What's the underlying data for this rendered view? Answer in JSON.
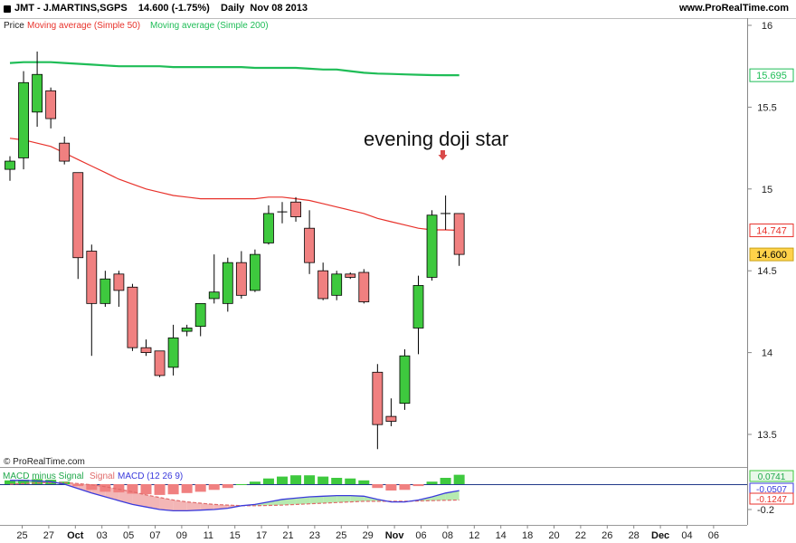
{
  "header": {
    "title": "JMT - J.MARTINS,SGPS    14.600 (-1.75%)    Daily  Nov 08 2013",
    "site": "www.ProRealTime.com"
  },
  "legend": {
    "price": "Price",
    "ma50": "Moving average (Simple 50)",
    "ma200": "Moving average (Simple 200)",
    "macd_diff": "MACD minus Signal",
    "signal": "Signal",
    "macd": "MACD (12 26 9)"
  },
  "watermark": "© ProRealTime.com",
  "annotation": "evening doji star",
  "colors": {
    "up": "#3ec93e",
    "down": "#f08080",
    "ma50": "#e8322b",
    "ma200": "#1fbd57",
    "macd_line": "#3a3adc",
    "signal_line": "#e06a6a",
    "macd_fill_pos": "#b6eab0",
    "macd_fill_neg": "#f3b6b6"
  },
  "chart_data": [
    {
      "type": "candlestick",
      "title": "JMT - J.MARTINS,SGPS",
      "ylim": [
        13.4,
        16.05
      ],
      "y_ticks": [
        16,
        15.5,
        15,
        14.5,
        14,
        13.5
      ],
      "x_tick_labels": [
        "25",
        "27",
        "Oct",
        "03",
        "05",
        "07",
        "09",
        "11",
        "15",
        "17",
        "21",
        "23",
        "25",
        "29",
        "Nov",
        "06",
        "08",
        "12",
        "14",
        "18",
        "20",
        "22",
        "26",
        "28",
        "Dec",
        "04",
        "06"
      ],
      "bold_x_labels": [
        "Oct",
        "Nov",
        "Dec"
      ],
      "price_labels": {
        "ma200": "15.695",
        "ma50": "14.747",
        "last": "14.600"
      },
      "candles": [
        {
          "o": 15.12,
          "h": 15.2,
          "l": 15.05,
          "c": 15.17
        },
        {
          "o": 15.19,
          "h": 15.72,
          "l": 15.12,
          "c": 15.65
        },
        {
          "o": 15.47,
          "h": 15.84,
          "l": 15.38,
          "c": 15.7
        },
        {
          "o": 15.6,
          "h": 15.62,
          "l": 15.37,
          "c": 15.43
        },
        {
          "o": 15.28,
          "h": 15.32,
          "l": 15.15,
          "c": 15.17
        },
        {
          "o": 15.1,
          "h": 15.1,
          "l": 14.45,
          "c": 14.58
        },
        {
          "o": 14.62,
          "h": 14.66,
          "l": 13.98,
          "c": 14.3
        },
        {
          "o": 14.3,
          "h": 14.5,
          "l": 14.28,
          "c": 14.45
        },
        {
          "o": 14.48,
          "h": 14.5,
          "l": 14.28,
          "c": 14.38
        },
        {
          "o": 14.4,
          "h": 14.42,
          "l": 14.01,
          "c": 14.03
        },
        {
          "o": 14.03,
          "h": 14.08,
          "l": 13.98,
          "c": 14.0
        },
        {
          "o": 14.01,
          "h": 14.01,
          "l": 13.85,
          "c": 13.86
        },
        {
          "o": 13.91,
          "h": 14.17,
          "l": 13.86,
          "c": 14.09
        },
        {
          "o": 14.13,
          "h": 14.17,
          "l": 14.1,
          "c": 14.15
        },
        {
          "o": 14.16,
          "h": 14.3,
          "l": 14.1,
          "c": 14.3
        },
        {
          "o": 14.33,
          "h": 14.6,
          "l": 14.3,
          "c": 14.37
        },
        {
          "o": 14.3,
          "h": 14.58,
          "l": 14.25,
          "c": 14.55
        },
        {
          "o": 14.55,
          "h": 14.62,
          "l": 14.33,
          "c": 14.35
        },
        {
          "o": 14.38,
          "h": 14.63,
          "l": 14.37,
          "c": 14.6
        },
        {
          "o": 14.67,
          "h": 14.9,
          "l": 14.66,
          "c": 14.85
        },
        {
          "o": 14.85,
          "h": 14.92,
          "l": 14.79,
          "c": 14.86
        },
        {
          "o": 14.92,
          "h": 14.95,
          "l": 14.8,
          "c": 14.83
        },
        {
          "o": 14.76,
          "h": 14.87,
          "l": 14.48,
          "c": 14.55
        },
        {
          "o": 14.5,
          "h": 14.55,
          "l": 14.32,
          "c": 14.33
        },
        {
          "o": 14.35,
          "h": 14.5,
          "l": 14.32,
          "c": 14.48
        },
        {
          "o": 14.48,
          "h": 14.49,
          "l": 14.45,
          "c": 14.46
        },
        {
          "o": 14.49,
          "h": 14.51,
          "l": 14.3,
          "c": 14.31
        },
        {
          "o": 13.88,
          "h": 13.93,
          "l": 13.41,
          "c": 13.56
        },
        {
          "o": 13.61,
          "h": 13.72,
          "l": 13.55,
          "c": 13.58
        },
        {
          "o": 13.69,
          "h": 14.02,
          "l": 13.65,
          "c": 13.98
        },
        {
          "o": 14.15,
          "h": 14.47,
          "l": 13.99,
          "c": 14.41
        },
        {
          "o": 14.46,
          "h": 14.87,
          "l": 14.44,
          "c": 14.84
        },
        {
          "o": 14.85,
          "h": 14.96,
          "l": 14.75,
          "c": 14.85
        },
        {
          "o": 14.85,
          "h": 14.85,
          "l": 14.53,
          "c": 14.6
        }
      ],
      "ma50": [
        15.31,
        15.3,
        15.28,
        15.26,
        15.22,
        15.18,
        15.14,
        15.1,
        15.06,
        15.03,
        15.0,
        14.98,
        14.96,
        14.95,
        14.94,
        14.94,
        14.94,
        14.94,
        14.94,
        14.95,
        14.95,
        14.94,
        14.93,
        14.91,
        14.89,
        14.87,
        14.85,
        14.82,
        14.8,
        14.78,
        14.76,
        14.75,
        14.75,
        14.747
      ],
      "ma200": [
        15.77,
        15.775,
        15.775,
        15.775,
        15.77,
        15.765,
        15.76,
        15.755,
        15.75,
        15.75,
        15.75,
        15.75,
        15.745,
        15.745,
        15.745,
        15.745,
        15.745,
        15.745,
        15.74,
        15.74,
        15.74,
        15.74,
        15.735,
        15.73,
        15.73,
        15.72,
        15.71,
        15.705,
        15.703,
        15.7,
        15.698,
        15.696,
        15.695,
        15.695
      ]
    },
    {
      "type": "bar",
      "title": "MACD (12 26 9)",
      "ylim": [
        -0.22,
        0.09
      ],
      "price_labels": {
        "hist": "0.0741",
        "macd": "-0.0507",
        "signal": "-0.1247"
      },
      "y_ticks": [
        -0.2
      ],
      "histogram": [
        0.03,
        0.035,
        0.04,
        0.035,
        0.02,
        -0.015,
        -0.045,
        -0.06,
        -0.065,
        -0.075,
        -0.08,
        -0.085,
        -0.08,
        -0.07,
        -0.06,
        -0.045,
        -0.03,
        0.0,
        0.02,
        0.045,
        0.06,
        0.07,
        0.07,
        0.06,
        0.05,
        0.045,
        0.03,
        -0.03,
        -0.05,
        -0.045,
        -0.015,
        0.02,
        0.05,
        0.0741
      ],
      "macd": [
        0.03,
        0.03,
        0.025,
        0.02,
        0.0,
        -0.035,
        -0.07,
        -0.1,
        -0.13,
        -0.16,
        -0.18,
        -0.2,
        -0.21,
        -0.21,
        -0.205,
        -0.2,
        -0.19,
        -0.17,
        -0.16,
        -0.14,
        -0.12,
        -0.11,
        -0.1,
        -0.095,
        -0.09,
        -0.09,
        -0.095,
        -0.12,
        -0.14,
        -0.14,
        -0.125,
        -0.1,
        -0.07,
        -0.0507
      ],
      "signal": [
        0.0,
        0.005,
        0.01,
        0.012,
        0.012,
        0.005,
        -0.005,
        -0.02,
        -0.04,
        -0.06,
        -0.085,
        -0.105,
        -0.125,
        -0.14,
        -0.15,
        -0.16,
        -0.165,
        -0.17,
        -0.17,
        -0.168,
        -0.165,
        -0.16,
        -0.155,
        -0.15,
        -0.145,
        -0.14,
        -0.135,
        -0.135,
        -0.135,
        -0.135,
        -0.133,
        -0.13,
        -0.127,
        -0.1247
      ]
    }
  ]
}
